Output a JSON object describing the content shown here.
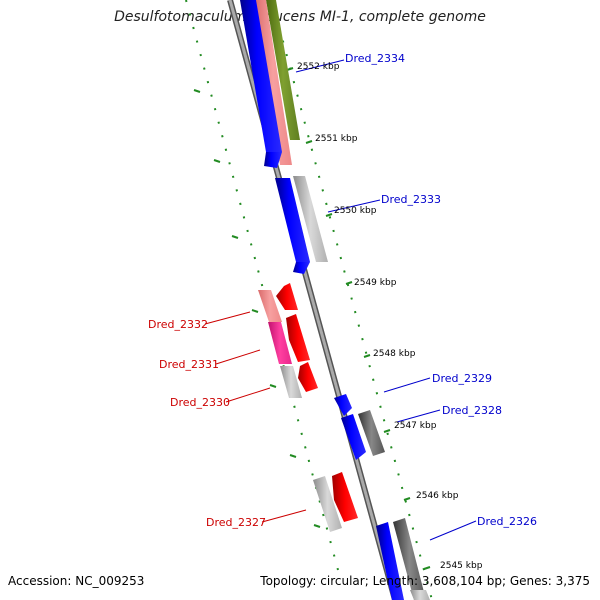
{
  "title": "Desulfotomaculum reducens MI-1, complete genome",
  "footer": {
    "accession_label": "Accession:",
    "accession": "NC_009253",
    "topology_label": "Topology:",
    "topology": "circular;",
    "length_label": "Length:",
    "length": "3,608,104 bp;",
    "genes_label": "Genes:",
    "genes": "3,375"
  },
  "ticks": [
    {
      "label": "2552 kbp"
    },
    {
      "label": "2551 kbp"
    },
    {
      "label": "2550 kbp"
    },
    {
      "label": "2549 kbp"
    },
    {
      "label": "2548 kbp"
    },
    {
      "label": "2547 kbp"
    },
    {
      "label": "2546 kbp"
    },
    {
      "label": "2545 kbp"
    }
  ],
  "gene_labels": [
    {
      "name": "Dred_2334",
      "strand": "forward",
      "color": "#0000cc"
    },
    {
      "name": "Dred_2333",
      "strand": "forward",
      "color": "#0000cc"
    },
    {
      "name": "Dred_2332",
      "strand": "reverse",
      "color": "#cc0000"
    },
    {
      "name": "Dred_2331",
      "strand": "reverse",
      "color": "#cc0000"
    },
    {
      "name": "Dred_2330",
      "strand": "reverse",
      "color": "#cc0000"
    },
    {
      "name": "Dred_2329",
      "strand": "forward",
      "color": "#0000cc"
    },
    {
      "name": "Dred_2328",
      "strand": "forward",
      "color": "#0000cc"
    },
    {
      "name": "Dred_2327",
      "strand": "reverse",
      "color": "#cc0000"
    },
    {
      "name": "Dred_2326",
      "strand": "forward",
      "color": "#0000cc"
    }
  ],
  "colors": {
    "forward_cds": "#0000ff",
    "reverse_cds": "#ff0000",
    "backbone": "#888888",
    "tick_marks": "#228b22",
    "cog_gray": "#bbbbbb",
    "cog_dark": "#666666",
    "cog_pink": "#f08080",
    "cog_magenta": "#ff1493",
    "cog_olive": "#6b8e23"
  }
}
